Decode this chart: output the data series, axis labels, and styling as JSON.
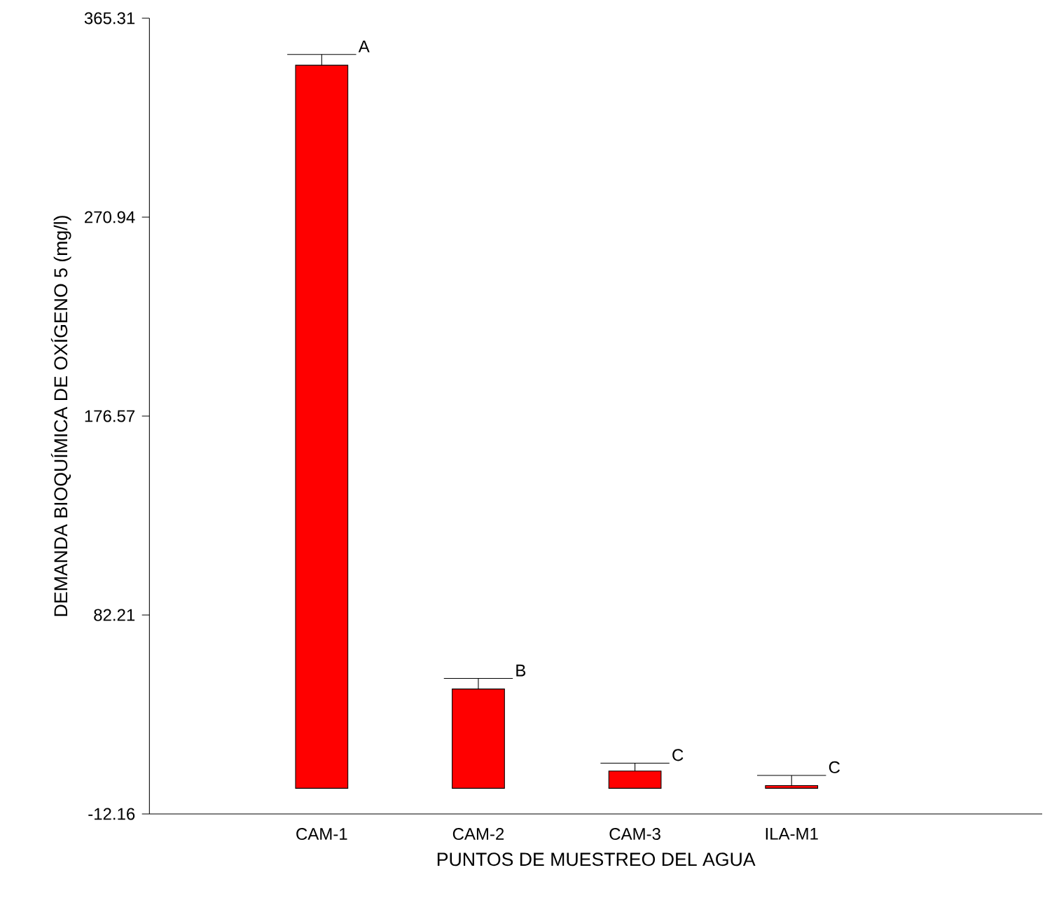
{
  "chart_data": {
    "type": "bar",
    "xlabel": "PUNTOS DE MUESTREO DEL AGUA",
    "ylabel": "DEMANDA BIOQUÍMICA DE OXÍGENO 5 (mg/l)",
    "categories": [
      "CAM-1",
      "CAM-2",
      "CAM-3",
      "ILA-M1"
    ],
    "values": [
      343.0,
      47.1,
      8.2,
      1.3
    ],
    "errors": [
      [
        343.0,
        348.1
      ],
      [
        47.1,
        52.1
      ],
      [
        8.2,
        11.9
      ],
      [
        1.3,
        6.1
      ]
    ],
    "color": "#ff0000",
    "ylim": [
      -12.16,
      365.31
    ],
    "yticks": [
      -12.16,
      82.21,
      176.57,
      270.94,
      365.31
    ],
    "annotations": [
      "A",
      "B",
      "C",
      "C"
    ],
    "grid": false
  }
}
